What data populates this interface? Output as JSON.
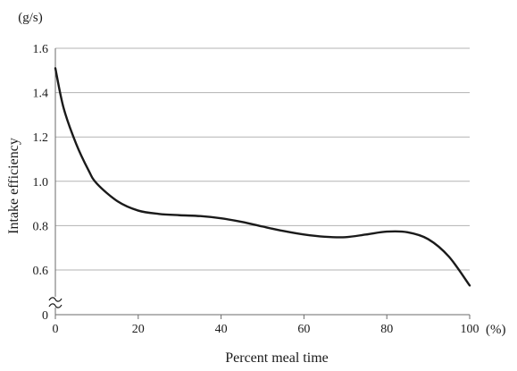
{
  "chart_data": {
    "type": "line",
    "title": "",
    "xlabel": "Percent meal time",
    "ylabel": "Intake efficiency",
    "x_unit": "(%)",
    "y_unit": "(g/s)",
    "xlim": [
      0,
      100
    ],
    "ylim": [
      0.5,
      1.6
    ],
    "y_axis_break": true,
    "y_break_label": "0",
    "x_ticks": [
      0,
      20,
      40,
      60,
      80,
      100
    ],
    "x_tick_labels": [
      "0",
      "20",
      "40",
      "60",
      "80",
      "100"
    ],
    "y_ticks": [
      0.6,
      0.8,
      1.0,
      1.2,
      1.4,
      1.6
    ],
    "y_tick_labels": [
      "0.6",
      "0.8",
      "1.0",
      "1.2",
      "1.4",
      "1.6"
    ],
    "grid": true,
    "legend": "none",
    "line_color": "#1a1a1a",
    "grid_color": "#b3b3b3",
    "series": [
      {
        "x": [
          0,
          2,
          5,
          8,
          10,
          15,
          20,
          25,
          30,
          35,
          40,
          45,
          50,
          55,
          60,
          65,
          70,
          75,
          80,
          85,
          90,
          95,
          100
        ],
        "y": [
          1.51,
          1.33,
          1.17,
          1.05,
          0.99,
          0.91,
          0.868,
          0.853,
          0.847,
          0.843,
          0.833,
          0.817,
          0.796,
          0.776,
          0.76,
          0.75,
          0.748,
          0.76,
          0.773,
          0.77,
          0.739,
          0.66,
          0.53
        ]
      }
    ]
  }
}
